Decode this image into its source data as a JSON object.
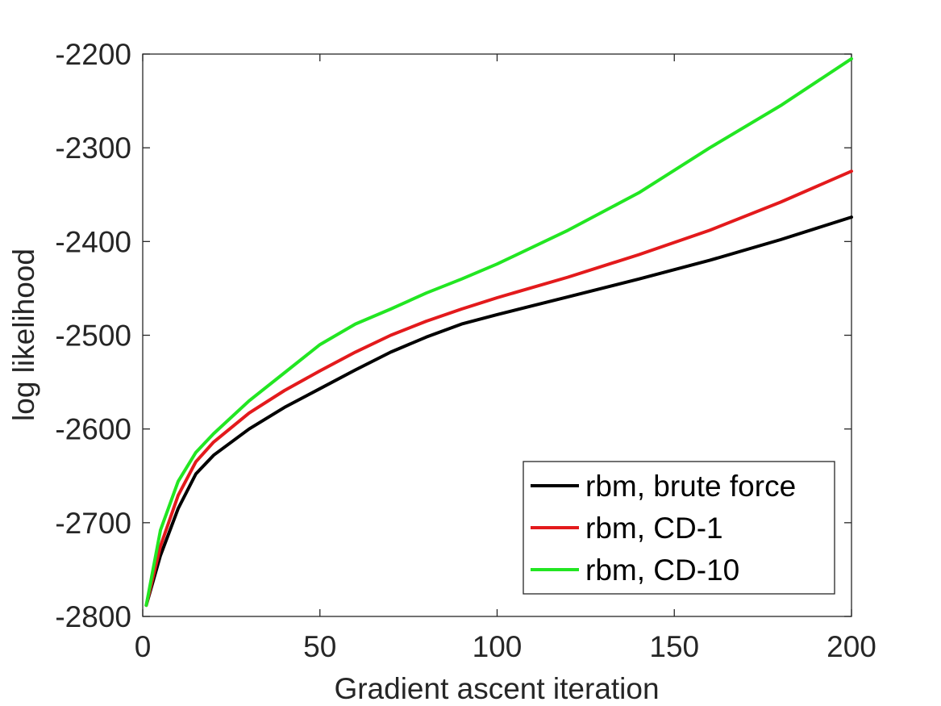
{
  "chart_data": {
    "type": "line",
    "title": "",
    "xlabel": "Gradient ascent iteration",
    "ylabel": "log likelihood",
    "xlim": [
      0,
      200
    ],
    "ylim": [
      -2800,
      -2200
    ],
    "xticks": [
      0,
      50,
      100,
      150,
      200
    ],
    "yticks": [
      -2800,
      -2700,
      -2600,
      -2500,
      -2400,
      -2300,
      -2200
    ],
    "xtick_labels": [
      "0",
      "50",
      "100",
      "150",
      "200"
    ],
    "ytick_labels": [
      "-2800",
      "-2700",
      "-2600",
      "-2500",
      "-2400",
      "-2300",
      "-2200"
    ],
    "grid": false,
    "legend_position": "bottom-right",
    "series": [
      {
        "name": "rbm, brute force",
        "color": "#000000",
        "x": [
          1,
          5,
          10,
          15,
          20,
          30,
          40,
          50,
          60,
          70,
          80,
          90,
          100,
          120,
          140,
          160,
          180,
          200
        ],
        "y": [
          -2788,
          -2735,
          -2685,
          -2648,
          -2628,
          -2600,
          -2577,
          -2557,
          -2537,
          -2518,
          -2502,
          -2488,
          -2478,
          -2459,
          -2440,
          -2420,
          -2398,
          -2374
        ]
      },
      {
        "name": "rbm, CD-1",
        "color": "#e31a1c",
        "x": [
          1,
          5,
          10,
          15,
          20,
          30,
          40,
          50,
          60,
          70,
          80,
          90,
          100,
          120,
          140,
          160,
          180,
          200
        ],
        "y": [
          -2788,
          -2725,
          -2671,
          -2635,
          -2614,
          -2583,
          -2559,
          -2538,
          -2518,
          -2500,
          -2485,
          -2472,
          -2460,
          -2438,
          -2414,
          -2388,
          -2358,
          -2325
        ]
      },
      {
        "name": "rbm, CD-10",
        "color": "#22e622",
        "x": [
          1,
          5,
          10,
          15,
          20,
          30,
          40,
          50,
          60,
          70,
          80,
          90,
          100,
          120,
          140,
          160,
          180,
          200
        ],
        "y": [
          -2788,
          -2708,
          -2656,
          -2625,
          -2605,
          -2570,
          -2540,
          -2510,
          -2488,
          -2472,
          -2455,
          -2440,
          -2424,
          -2388,
          -2348,
          -2300,
          -2255,
          -2205
        ]
      }
    ]
  }
}
